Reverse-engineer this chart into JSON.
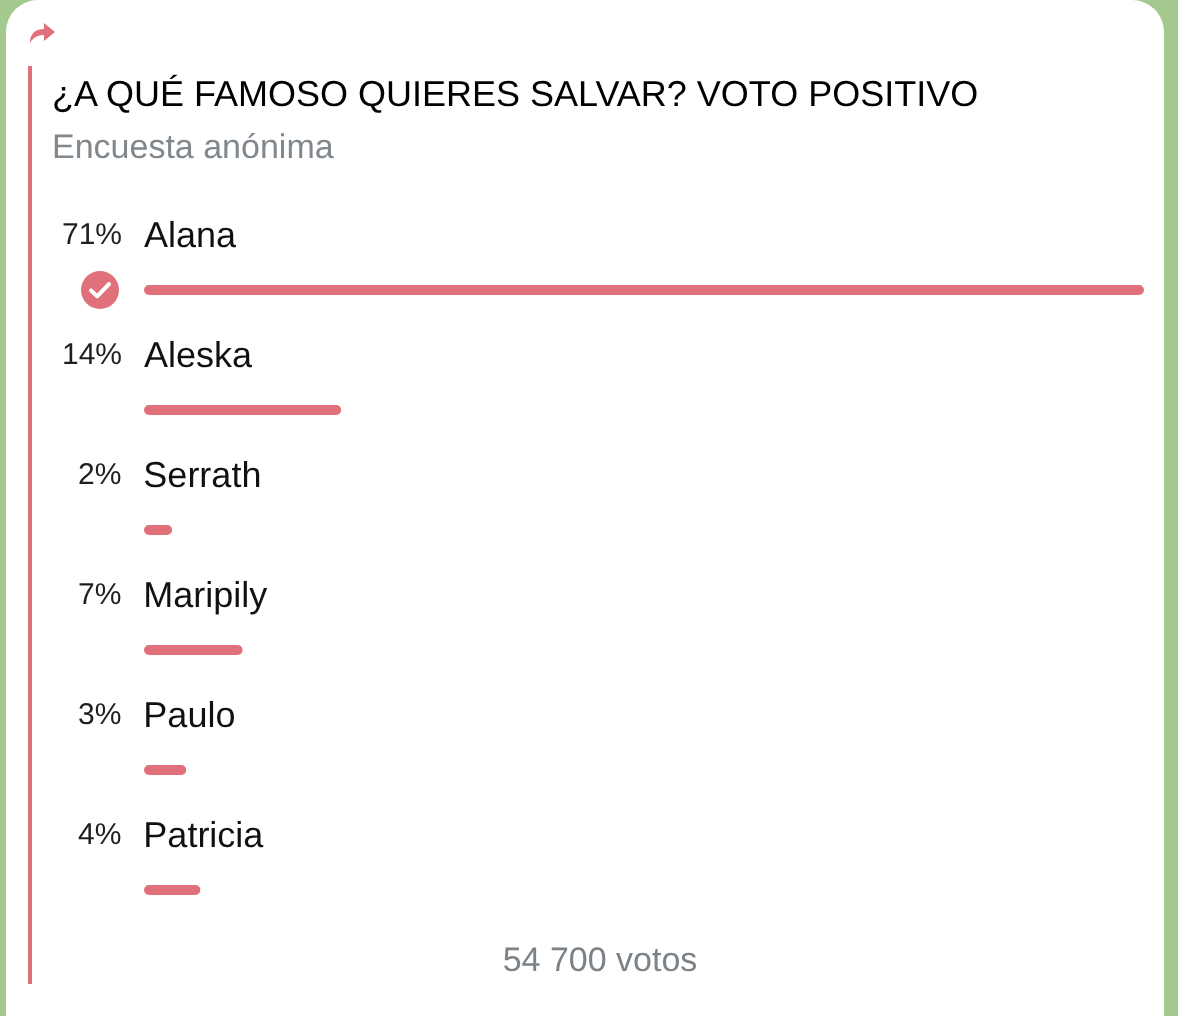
{
  "chart_data": {
    "type": "bar",
    "orientation": "horizontal",
    "title": "¿A QUÉ FAMOSO QUIERES SALVAR? VOTO POSITIVO",
    "subtitle": "Encuesta anónima",
    "annotations": [
      "54 700 votos"
    ],
    "categories": [
      "Alana",
      "Aleska",
      "Serrath",
      "Maripily",
      "Paulo",
      "Patricia"
    ],
    "values": [
      71,
      14,
      2,
      7,
      3,
      4
    ],
    "value_labels": [
      "71%",
      "14%",
      "2%",
      "7%",
      "3%",
      "4%"
    ],
    "color": "#e0707a"
  }
}
